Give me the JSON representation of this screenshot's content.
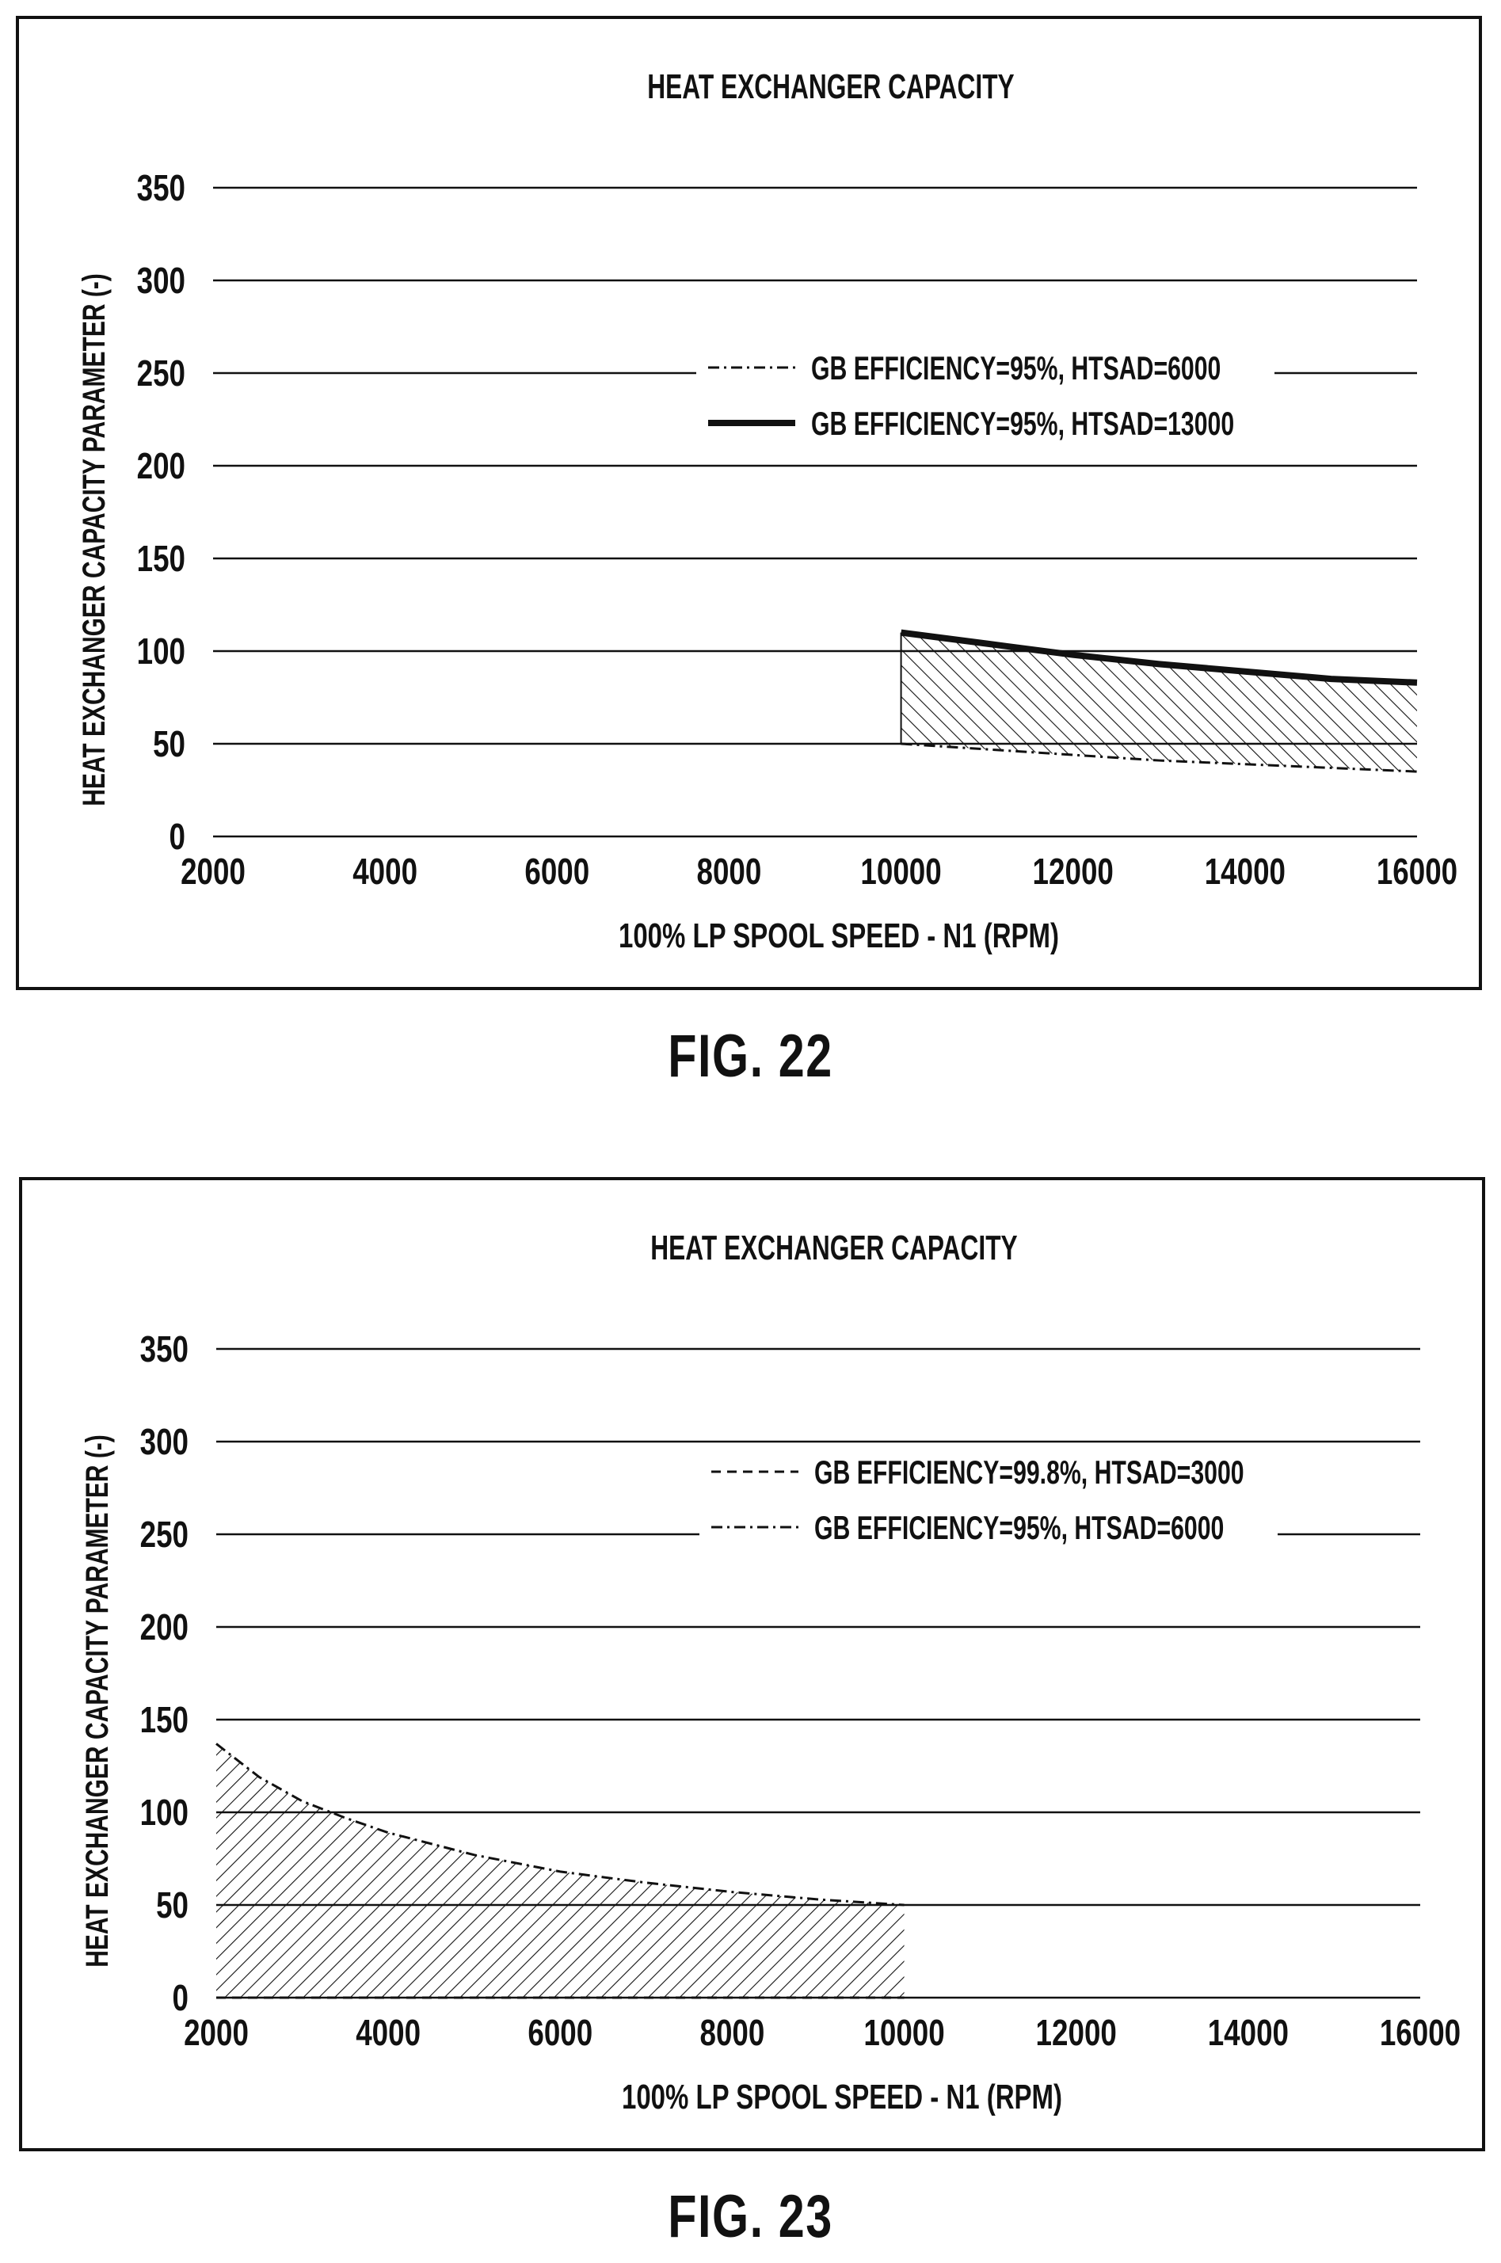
{
  "figures": [
    {
      "label": "FIG. 22",
      "chart_data": {
        "type": "line",
        "title": "HEAT EXCHANGER CAPACITY",
        "xlabel": "100% LP SPOOL SPEED - N1 (RPM)",
        "ylabel": "HEAT EXCHANGER CAPACITY PARAMETER (-)",
        "xlim": [
          2000,
          16000
        ],
        "ylim": [
          0,
          350
        ],
        "x_ticks": [
          "2000",
          "4000",
          "6000",
          "8000",
          "10000",
          "12000",
          "14000",
          "16000"
        ],
        "y_ticks": [
          "0",
          "50",
          "100",
          "150",
          "200",
          "250",
          "300",
          "350"
        ],
        "grid": "horizontal",
        "legend_position": "upper-right",
        "series": [
          {
            "name": "GB EFFICIENCY=95%, HTSAD=6000",
            "style": "dash-dot",
            "x": [
              10000,
              11000,
              12000,
              13000,
              14000,
              15000,
              16000
            ],
            "y": [
              50,
              47,
              44,
              41,
              39,
              37,
              35
            ]
          },
          {
            "name": "GB EFFICIENCY=95%, HTSAD=13000",
            "style": "solid-thick",
            "x": [
              10000,
              11000,
              12000,
              13000,
              14000,
              15000,
              16000
            ],
            "y": [
              110,
              104,
              98,
              93,
              89,
              85,
              83
            ]
          }
        ],
        "shaded_region": "between series, 10000 to 16000 RPM"
      }
    },
    {
      "label": "FIG. 23",
      "chart_data": {
        "type": "line",
        "title": "HEAT EXCHANGER CAPACITY",
        "xlabel": "100% LP SPOOL SPEED - N1 (RPM)",
        "ylabel": "HEAT EXCHANGER CAPACITY PARAMETER (-)",
        "xlim": [
          2000,
          16000
        ],
        "ylim": [
          0,
          350
        ],
        "x_ticks": [
          "2000",
          "4000",
          "6000",
          "8000",
          "10000",
          "12000",
          "14000",
          "16000"
        ],
        "y_ticks": [
          "0",
          "50",
          "100",
          "150",
          "200",
          "250",
          "300",
          "350"
        ],
        "grid": "horizontal",
        "legend_position": "upper-right",
        "series": [
          {
            "name": "GB EFFICIENCY=99.8%, HTSAD=3000",
            "style": "dashed",
            "x": [
              2000,
              4000,
              6000,
              8000,
              10000
            ],
            "y": [
              0,
              0,
              0,
              0,
              0
            ]
          },
          {
            "name": "GB EFFICIENCY=95%, HTSAD=6000",
            "style": "dash-dot",
            "x": [
              2000,
              2500,
              3000,
              3500,
              4000,
              5000,
              6000,
              7000,
              8000,
              9000,
              10000
            ],
            "y": [
              137,
              119,
              106,
              97,
              89,
              77,
              68,
              62,
              57,
              53,
              50
            ]
          }
        ],
        "shaded_region": "between series, 2000 to 10000 RPM"
      }
    }
  ]
}
